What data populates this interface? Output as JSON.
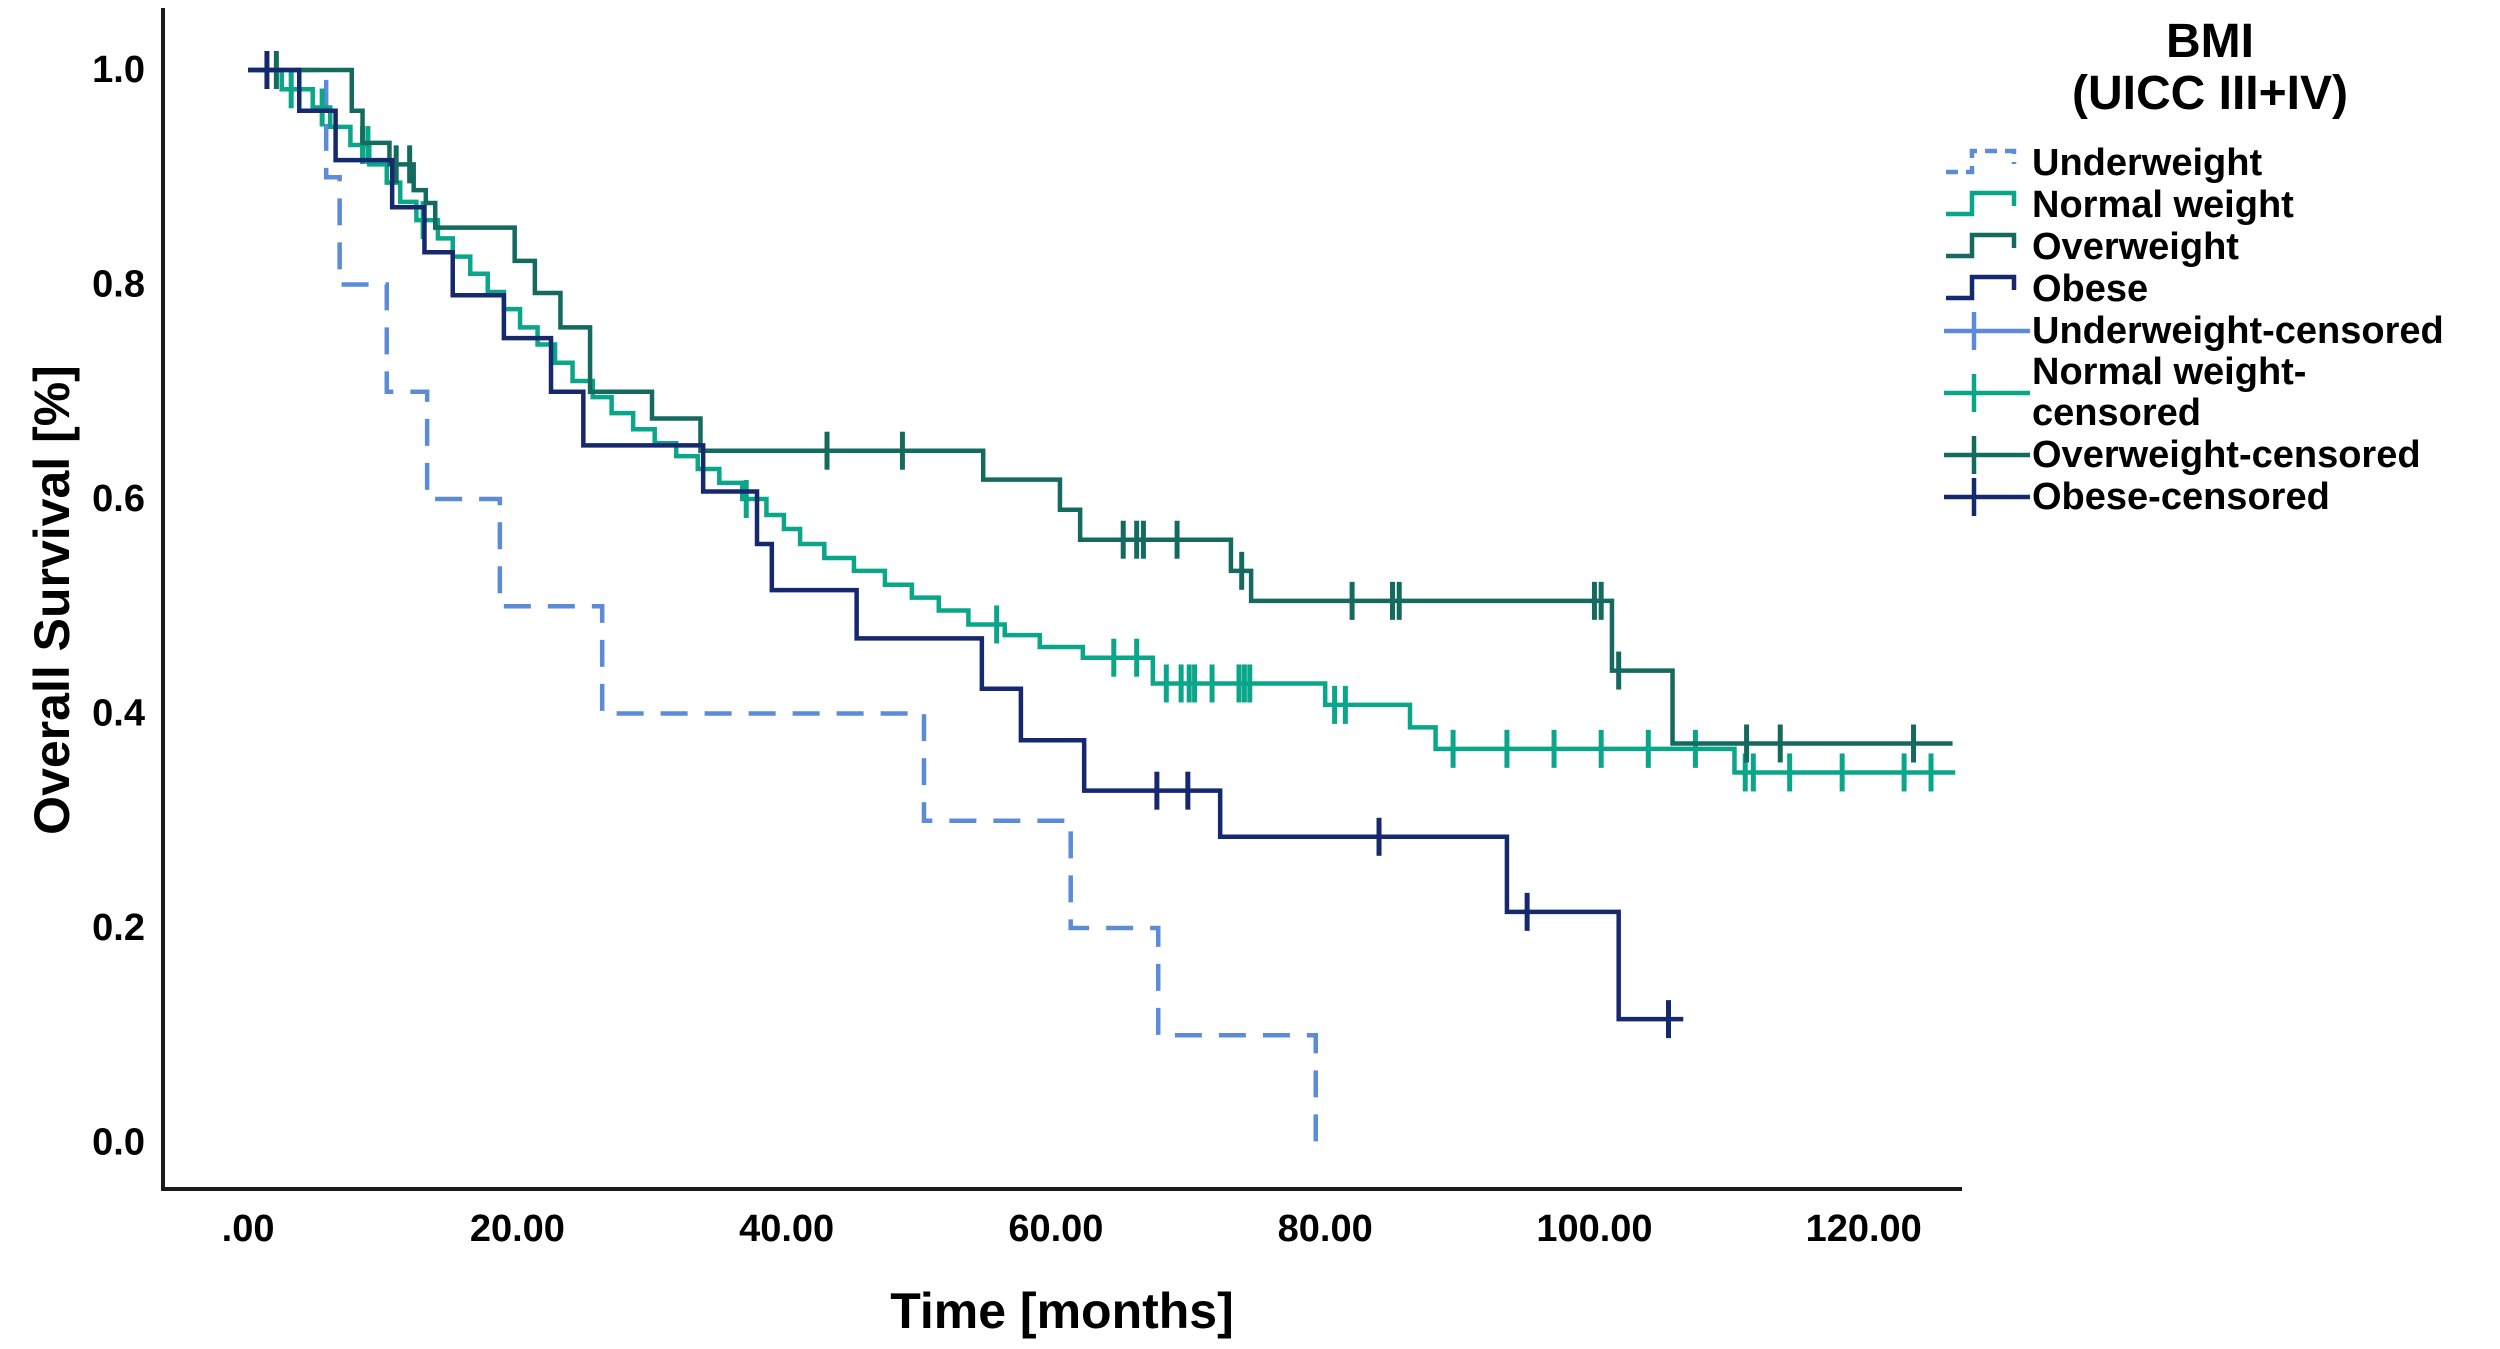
{
  "chart_data": {
    "type": "line",
    "subtype": "kaplan-meier-step-survival",
    "title": "",
    "legend_title": "BMI\n(UICC III+IV)",
    "xlabel": "Time [months]",
    "ylabel": "Overall Survival [%]",
    "x_axis": {
      "ticks": [
        0,
        20,
        40,
        60,
        80,
        100,
        120
      ],
      "tick_labels": [
        ".00",
        "20.00",
        "40.00",
        "60.00",
        "80.00",
        "100.00",
        "120.00"
      ],
      "min": -6.32,
      "max": 127.3,
      "grid": false
    },
    "y_axis": {
      "ticks": [
        0.0,
        0.2,
        0.4,
        0.6,
        0.8,
        1.0
      ],
      "tick_labels": [
        "0.0",
        "0.2",
        "0.4",
        "0.6",
        "0.8",
        "1.0"
      ],
      "min": -0.0434,
      "max": 1.0578,
      "grid": false
    },
    "legend_position": "right",
    "series": [
      {
        "name": "Underweight",
        "censored_name": "Underweight-censored",
        "color": "#5C8CD8",
        "dashed": true,
        "start": [
          0,
          1.0
        ],
        "steps": [
          [
            5.8,
            0.9
          ],
          [
            6.8,
            0.8
          ],
          [
            10.3,
            0.7
          ],
          [
            13.3,
            0.6
          ],
          [
            18.7,
            0.5
          ],
          [
            26.3,
            0.4
          ],
          [
            50.2,
            0.3
          ],
          [
            61.1,
            0.2
          ],
          [
            67.6,
            0.1
          ],
          [
            79.3,
            0.0
          ]
        ],
        "end": 79.8,
        "censor_times": []
      },
      {
        "name": "Normal weight",
        "censored_name": "Normal weight-\ncensored",
        "color": "#0AA689",
        "dashed": false,
        "start": [
          0,
          1.0
        ],
        "steps": [
          [
            2.5,
            0.982
          ],
          [
            4.8,
            0.965
          ],
          [
            6.1,
            0.947
          ],
          [
            7.6,
            0.93
          ],
          [
            9,
            0.912
          ],
          [
            10.3,
            0.895
          ],
          [
            11.3,
            0.877
          ],
          [
            12.5,
            0.86
          ],
          [
            14.1,
            0.843
          ],
          [
            15.2,
            0.826
          ],
          [
            16.5,
            0.81
          ],
          [
            17.8,
            0.793
          ],
          [
            19,
            0.777
          ],
          [
            20.2,
            0.76
          ],
          [
            21.5,
            0.744
          ],
          [
            22.8,
            0.727
          ],
          [
            24.1,
            0.71
          ],
          [
            25.6,
            0.695
          ],
          [
            27,
            0.68
          ],
          [
            28.6,
            0.665
          ],
          [
            30.2,
            0.652
          ],
          [
            31.8,
            0.64
          ],
          [
            33.4,
            0.628
          ],
          [
            35,
            0.615
          ],
          [
            36.7,
            0.6
          ],
          [
            38.5,
            0.585
          ],
          [
            39.8,
            0.572
          ],
          [
            41,
            0.558
          ],
          [
            42.8,
            0.545
          ],
          [
            45,
            0.533
          ],
          [
            47.3,
            0.52
          ],
          [
            49.3,
            0.508
          ],
          [
            51.3,
            0.496
          ],
          [
            53.5,
            0.483
          ],
          [
            56.2,
            0.473
          ],
          [
            58.8,
            0.462
          ],
          [
            62,
            0.452
          ],
          [
            67.2,
            0.428
          ],
          [
            80,
            0.408
          ],
          [
            86.3,
            0.387
          ],
          [
            88.2,
            0.367
          ],
          [
            110.4,
            0.345
          ]
        ],
        "end": 126.8,
        "censor_times": [
          3.2,
          5.5,
          8.5,
          8.9,
          13,
          37,
          55.6,
          64.3,
          66,
          68.2,
          69.3,
          69.9,
          70.3,
          71.6,
          73.6,
          74,
          74.4,
          80.7,
          81.5,
          89.5,
          93.5,
          97,
          100.5,
          104,
          107.5,
          111.2,
          111.8,
          114.5,
          118.4,
          123,
          125
        ]
      },
      {
        "name": "Overweight",
        "censored_name": "Overweight-censored",
        "color": "#156A60",
        "dashed": false,
        "start": [
          0,
          1.0
        ],
        "steps": [
          [
            7.7,
            0.962
          ],
          [
            8.5,
            0.932
          ],
          [
            10.5,
            0.912
          ],
          [
            12.3,
            0.888
          ],
          [
            13.2,
            0.876
          ],
          [
            13.9,
            0.853
          ],
          [
            19.8,
            0.822
          ],
          [
            21.3,
            0.792
          ],
          [
            23.2,
            0.76
          ],
          [
            25.4,
            0.7
          ],
          [
            30,
            0.675
          ],
          [
            33.6,
            0.645
          ],
          [
            54.6,
            0.618
          ],
          [
            60.3,
            0.59
          ],
          [
            61.8,
            0.562
          ],
          [
            73,
            0.533
          ],
          [
            74.5,
            0.505
          ],
          [
            101.3,
            0.44
          ],
          [
            105.8,
            0.372
          ]
        ],
        "end": 126.6,
        "censor_times": [
          2.1,
          11,
          12,
          43,
          48.6,
          65,
          66,
          66.5,
          69,
          73.8,
          82,
          85,
          85.5,
          100,
          100.5,
          101.8,
          111.3,
          113.8,
          123.7
        ]
      },
      {
        "name": "Obese",
        "censored_name": "Obese-censored",
        "color": "#16296F",
        "dashed": false,
        "start": [
          0,
          1.0
        ],
        "steps": [
          [
            3.8,
            0.962
          ],
          [
            6.5,
            0.916
          ],
          [
            10.7,
            0.872
          ],
          [
            13.1,
            0.83
          ],
          [
            15.2,
            0.79
          ],
          [
            19,
            0.75
          ],
          [
            22.5,
            0.7
          ],
          [
            24.9,
            0.65
          ],
          [
            33.8,
            0.607
          ],
          [
            37.8,
            0.558
          ],
          [
            38.9,
            0.515
          ],
          [
            45.2,
            0.47
          ],
          [
            54.5,
            0.423
          ],
          [
            57.4,
            0.375
          ],
          [
            62.1,
            0.328
          ],
          [
            72.2,
            0.285
          ],
          [
            93.5,
            0.215
          ],
          [
            101.8,
            0.115
          ]
        ],
        "end": 106.6,
        "censor_times": [
          1.4,
          67.5,
          69.8,
          84,
          95,
          105.5
        ]
      }
    ]
  }
}
